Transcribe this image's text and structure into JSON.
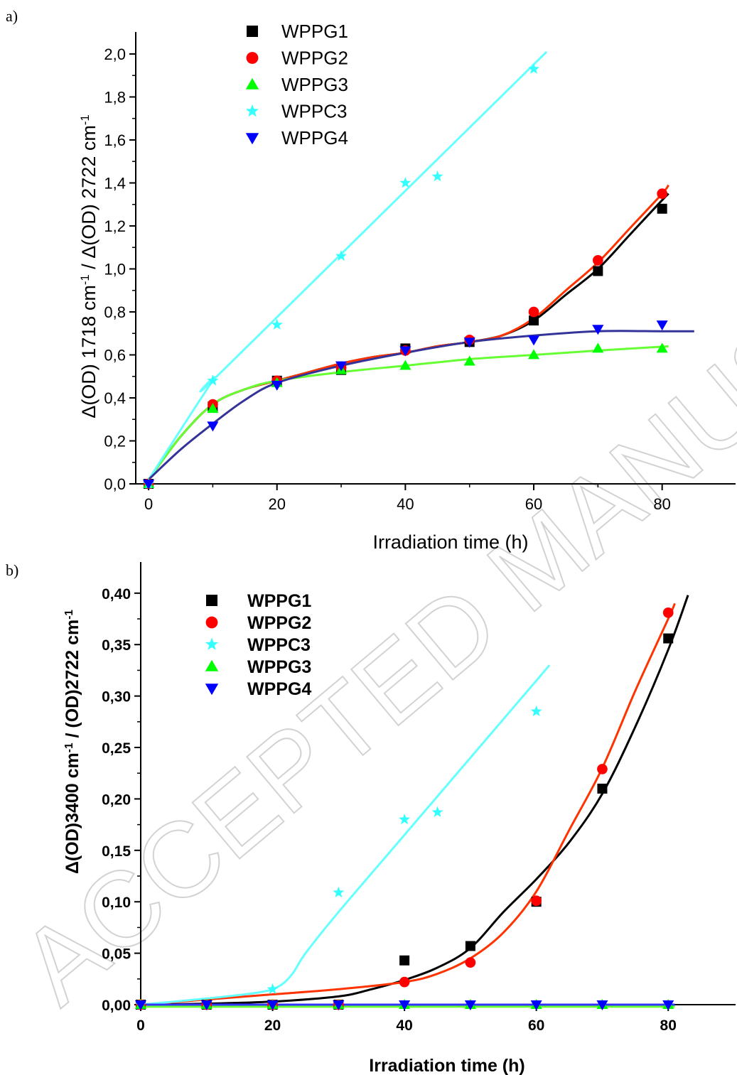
{
  "watermark": "ACCEPTED MANUSCRIPT",
  "chart_data": [
    {
      "panel_label": "a)",
      "type": "scatter",
      "xlabel": "Irradiation time (h)",
      "ylabel_parts": [
        "Δ(OD) 1718 cm",
        "-1",
        " / Δ(OD) 2722 cm",
        "-1"
      ],
      "xlim": [
        -2,
        90
      ],
      "ylim": [
        0,
        2.1
      ],
      "x_ticks": [
        0,
        20,
        40,
        60,
        80
      ],
      "x_tick_labels": [
        "0",
        "20",
        "40",
        "60",
        "80"
      ],
      "y_ticks": [
        0,
        0.2,
        0.4,
        0.6,
        0.8,
        1.0,
        1.2,
        1.4,
        1.6,
        1.8,
        2.0
      ],
      "y_tick_labels": [
        "0,0",
        "0,2",
        "0,4",
        "0,6",
        "0,8",
        "1,0",
        "1,2",
        "1,4",
        "1,6",
        "1,8",
        "2,0"
      ],
      "legend_position": "top-center",
      "series": [
        {
          "name": "WPPG1",
          "marker": "square",
          "color": "#000000",
          "line_color": "#000000",
          "x": [
            0,
            10,
            20,
            30,
            40,
            50,
            60,
            70,
            80
          ],
          "y": [
            0.0,
            0.36,
            0.48,
            0.53,
            0.63,
            0.66,
            0.76,
            0.99,
            1.28
          ],
          "fit_x": [
            0,
            5,
            10,
            15,
            20,
            25,
            30,
            35,
            40,
            45,
            50,
            55,
            60,
            65,
            70,
            75,
            80,
            81
          ],
          "fit_y": [
            0.02,
            0.22,
            0.37,
            0.44,
            0.48,
            0.52,
            0.56,
            0.59,
            0.61,
            0.64,
            0.66,
            0.69,
            0.76,
            0.88,
            1.0,
            1.16,
            1.32,
            1.35
          ]
        },
        {
          "name": "WPPG2",
          "marker": "circle",
          "color": "#ff0000",
          "line_color": "#ff3300",
          "x": [
            0,
            10,
            20,
            30,
            40,
            50,
            60,
            70,
            80
          ],
          "y": [
            0.0,
            0.37,
            0.48,
            0.54,
            0.62,
            0.67,
            0.8,
            1.04,
            1.35
          ],
          "fit_x": [
            0,
            5,
            10,
            15,
            20,
            25,
            30,
            35,
            40,
            45,
            50,
            55,
            60,
            65,
            70,
            75,
            80,
            81
          ],
          "fit_y": [
            0.02,
            0.22,
            0.37,
            0.44,
            0.48,
            0.52,
            0.56,
            0.59,
            0.61,
            0.64,
            0.66,
            0.69,
            0.77,
            0.9,
            1.03,
            1.19,
            1.35,
            1.39
          ]
        },
        {
          "name": "WPPG3",
          "marker": "triangle-up",
          "color": "#00ff00",
          "line_color": "#66ff33",
          "x": [
            0,
            10,
            20,
            30,
            40,
            50,
            60,
            70,
            80
          ],
          "y": [
            0.0,
            0.35,
            0.47,
            0.53,
            0.55,
            0.57,
            0.6,
            0.63,
            0.63
          ],
          "fit_x": [
            0,
            5,
            10,
            15,
            20,
            30,
            40,
            50,
            60,
            70,
            81
          ],
          "fit_y": [
            0.02,
            0.22,
            0.37,
            0.44,
            0.48,
            0.52,
            0.55,
            0.58,
            0.6,
            0.62,
            0.64
          ]
        },
        {
          "name": "WPPC3",
          "marker": "star",
          "color": "#33ffff",
          "line_color": "#66ffff",
          "x": [
            0,
            10,
            20,
            30,
            40,
            45,
            60
          ],
          "y": [
            0.0,
            0.48,
            0.74,
            1.06,
            1.4,
            1.43,
            1.93
          ],
          "fit_x": [
            0,
            10,
            12,
            62
          ],
          "fit_y": [
            0.02,
            0.48,
            0.54,
            2.01
          ]
        },
        {
          "name": "WPPG4",
          "marker": "triangle-down",
          "color": "#0000ff",
          "line_color": "#333399",
          "x": [
            0,
            10,
            20,
            30,
            40,
            50,
            60,
            70,
            80
          ],
          "y": [
            0.0,
            0.27,
            0.46,
            0.55,
            0.62,
            0.66,
            0.67,
            0.72,
            0.74
          ],
          "fit_x": [
            0,
            5,
            10,
            15,
            20,
            30,
            40,
            50,
            60,
            70,
            80,
            85
          ],
          "fit_y": [
            0.02,
            0.16,
            0.28,
            0.39,
            0.47,
            0.55,
            0.61,
            0.66,
            0.69,
            0.71,
            0.71,
            0.71
          ]
        }
      ]
    },
    {
      "panel_label": "b)",
      "type": "scatter",
      "xlabel": "Irradiation   time  (h)",
      "ylabel_parts": [
        "Δ(OD)3400 cm",
        "-1",
        "      / (OD)2722 cm",
        "-1"
      ],
      "xlim": [
        0,
        90
      ],
      "ylim": [
        0,
        0.43
      ],
      "x_ticks": [
        0,
        20,
        40,
        60,
        80
      ],
      "x_tick_labels": [
        "0",
        "20",
        "40",
        "60",
        "80"
      ],
      "y_ticks": [
        0,
        0.05,
        0.1,
        0.15,
        0.2,
        0.25,
        0.3,
        0.35,
        0.4
      ],
      "y_tick_labels": [
        "0,00",
        "0,05",
        "0,10",
        "0,15",
        "0,20",
        "0,25",
        "0,30",
        "0,35",
        "0,40"
      ],
      "legend_position": "top-left",
      "series": [
        {
          "name": "WPPG1",
          "marker": "square",
          "color": "#000000",
          "line_color": "#000000",
          "x": [
            0,
            10,
            20,
            30,
            40,
            50,
            60,
            70,
            80
          ],
          "y": [
            0.0,
            0.0,
            0.0,
            0.0,
            0.043,
            0.057,
            0.1,
            0.21,
            0.356
          ],
          "fit_x": [
            0,
            10,
            20,
            30,
            35,
            40,
            45,
            50,
            55,
            60,
            65,
            70,
            75,
            80,
            83
          ],
          "fit_y": [
            0.0,
            0.001,
            0.003,
            0.008,
            0.015,
            0.024,
            0.036,
            0.055,
            0.09,
            0.122,
            0.158,
            0.205,
            0.27,
            0.345,
            0.398
          ]
        },
        {
          "name": "WPPG2",
          "marker": "circle",
          "color": "#ff0000",
          "line_color": "#ff3300",
          "x": [
            0,
            10,
            20,
            30,
            40,
            50,
            60,
            70,
            80
          ],
          "y": [
            0.0,
            0.0,
            0.0,
            0.0,
            0.022,
            0.041,
            0.101,
            0.229,
            0.381
          ],
          "fit_x": [
            0,
            10,
            20,
            30,
            40,
            45,
            50,
            55,
            60,
            65,
            70,
            75,
            80,
            81
          ],
          "fit_y": [
            0.0,
            0.005,
            0.01,
            0.015,
            0.022,
            0.03,
            0.045,
            0.07,
            0.11,
            0.17,
            0.23,
            0.305,
            0.375,
            0.39
          ]
        },
        {
          "name": "WPPC3",
          "marker": "star",
          "color": "#33ffff",
          "line_color": "#66ffff",
          "x": [
            0,
            20,
            30,
            40,
            45,
            60
          ],
          "y": [
            0.0,
            0.015,
            0.109,
            0.18,
            0.187,
            0.285
          ],
          "fit_x": [
            0,
            10,
            18,
            21,
            23,
            25,
            30,
            40,
            50,
            62
          ],
          "fit_y": [
            0.0,
            0.006,
            0.012,
            0.018,
            0.03,
            0.05,
            0.09,
            0.165,
            0.24,
            0.33
          ]
        },
        {
          "name": "WPPG3",
          "marker": "triangle-up",
          "color": "#00ff00",
          "line_color": "#66ff33",
          "x": [
            0,
            10,
            20,
            30,
            40,
            50,
            60,
            70,
            80
          ],
          "y": [
            0.0,
            0.0,
            0.0,
            0.0,
            0.0,
            0.0,
            0.0,
            0.0,
            0.0
          ],
          "fit_x": [
            0,
            81
          ],
          "fit_y": [
            -0.002,
            -0.002
          ]
        },
        {
          "name": "WPPG4",
          "marker": "triangle-down",
          "color": "#0000ff",
          "line_color": "#3333ff",
          "x": [
            0,
            10,
            20,
            30,
            40,
            50,
            60,
            70,
            80
          ],
          "y": [
            0.0,
            0.0,
            0.0,
            0.0,
            0.0,
            0.0,
            0.0,
            0.0,
            0.0
          ],
          "fit_x": [
            0,
            81
          ],
          "fit_y": [
            0.0,
            0.0
          ]
        }
      ]
    }
  ]
}
